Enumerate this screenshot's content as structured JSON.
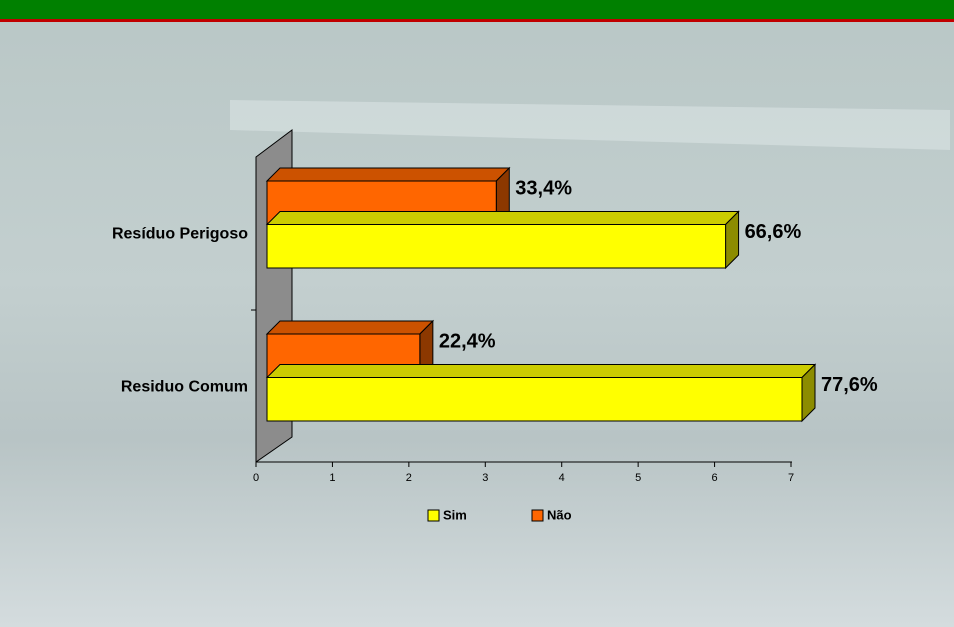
{
  "chart_data": {
    "type": "bar3d-horizontal",
    "categories": [
      "Resíduo Perigoso",
      "Residuo Comum"
    ],
    "series": [
      {
        "name": "Não",
        "color": "#ff6600",
        "values": [
          3,
          2
        ],
        "labels": [
          "33,4%",
          "22,4%"
        ]
      },
      {
        "name": "Sim",
        "color": "#ffff00",
        "values": [
          6,
          7
        ],
        "labels": [
          "66,6%",
          "77,6%"
        ]
      }
    ],
    "legend_order": [
      1,
      0
    ],
    "xlim": [
      0,
      7
    ],
    "xticks": [
      0,
      1,
      2,
      3,
      4,
      5,
      6,
      7
    ]
  }
}
